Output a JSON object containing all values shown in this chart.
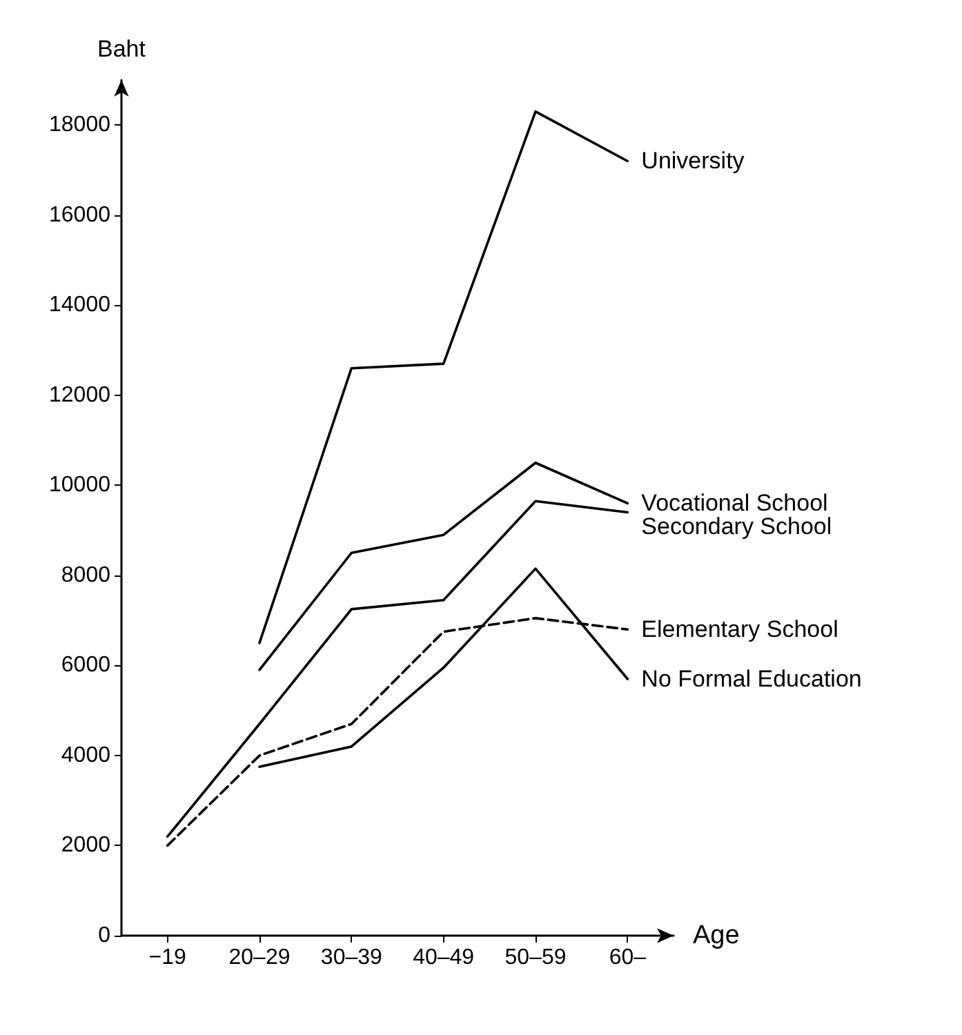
{
  "chart_data": {
    "type": "line",
    "xlabel": "Age",
    "ylabel": "Baht",
    "categories": [
      "−19",
      "20–29",
      "30–39",
      "40–49",
      "50–59",
      "60–"
    ],
    "ylim": [
      0,
      19000
    ],
    "yticks": [
      0,
      2000,
      4000,
      6000,
      8000,
      10000,
      12000,
      14000,
      16000,
      18000
    ],
    "grid": false,
    "legend": false,
    "marker": "none",
    "series": [
      {
        "name": "University",
        "color": "#000000",
        "line_style": "solid",
        "values": [
          null,
          6500,
          12600,
          12700,
          18300,
          17200
        ]
      },
      {
        "name": "Vocational School",
        "color": "#000000",
        "line_style": "solid",
        "values": [
          null,
          5900,
          8500,
          8900,
          10500,
          9600
        ]
      },
      {
        "name": "Secondary School",
        "color": "#000000",
        "line_style": "solid",
        "values": [
          2200,
          4700,
          7250,
          7450,
          9650,
          9400
        ]
      },
      {
        "name": "Elementary School",
        "color": "#000000",
        "line_style": "dashed",
        "values": [
          2000,
          4000,
          4700,
          6750,
          7050,
          6800
        ]
      },
      {
        "name": "No Formal Education",
        "color": "#000000",
        "line_style": "solid",
        "values": [
          null,
          3750,
          4200,
          5950,
          8150,
          5700
        ]
      }
    ]
  }
}
